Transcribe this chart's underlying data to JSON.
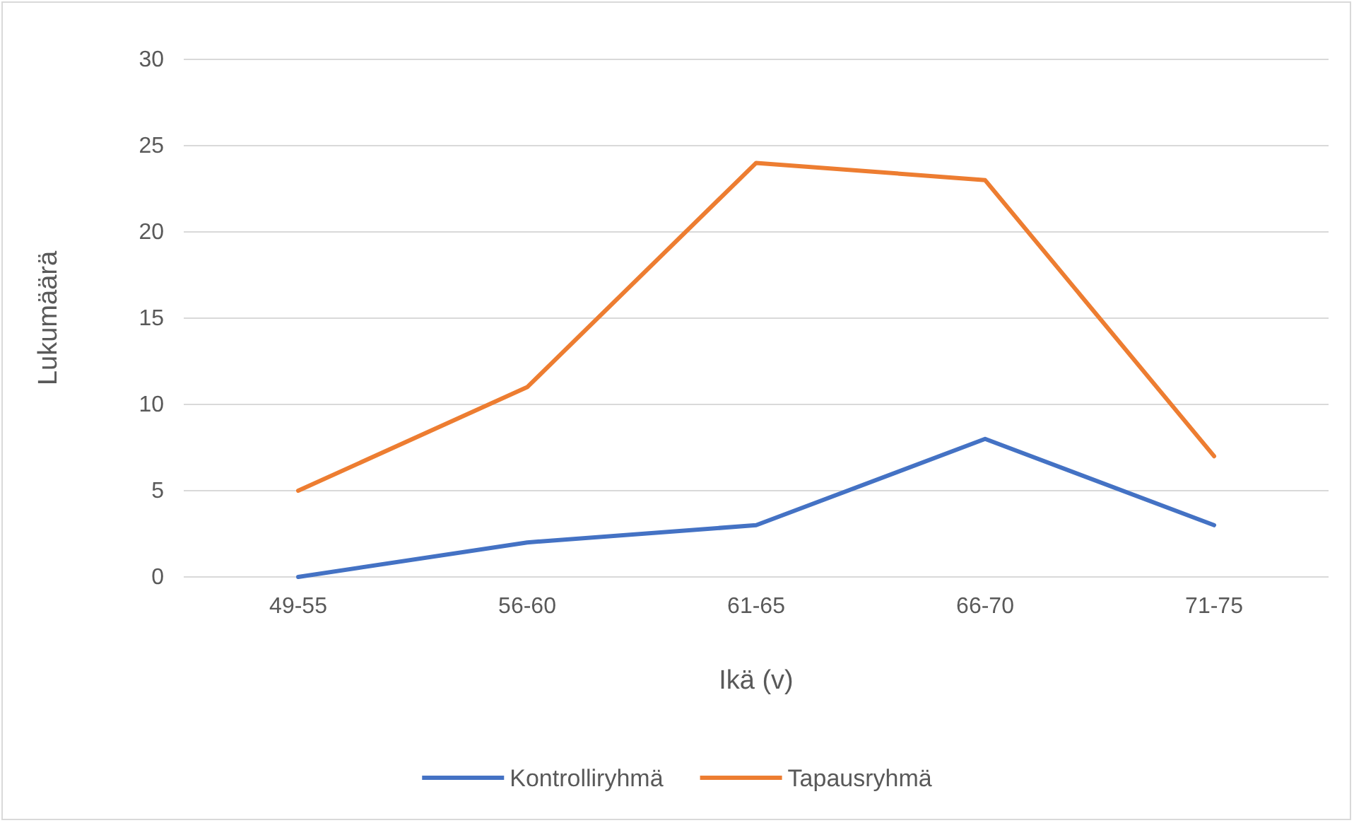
{
  "chart_data": {
    "type": "line",
    "xlabel": "Ikä (v)",
    "ylabel": "Lukumäärä",
    "categories": [
      "49-55",
      "56-60",
      "61-65",
      "66-70",
      "71-75"
    ],
    "series": [
      {
        "name": "Kontrolliryhmä",
        "color": "#4472c4",
        "values": [
          0,
          2,
          3,
          8,
          3
        ]
      },
      {
        "name": "Tapausryhmä",
        "color": "#ed7d31",
        "values": [
          5,
          11,
          24,
          23,
          7
        ]
      }
    ],
    "ylim": [
      0,
      30
    ],
    "yticks": [
      0,
      5,
      10,
      15,
      20,
      25,
      30
    ],
    "grid": "y",
    "legend": "bottom",
    "marker": "none",
    "line_style": "solid"
  }
}
